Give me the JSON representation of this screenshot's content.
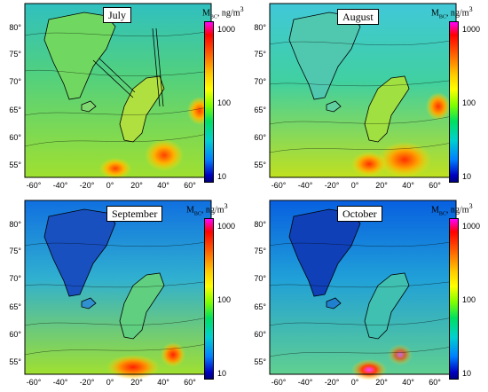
{
  "colorbar": {
    "label_main": "M",
    "label_sub": "BC",
    "label_unit": ", ng/m",
    "label_sup": "3",
    "ticks": [
      "1000",
      "100",
      "10"
    ]
  },
  "axes": {
    "lon_ticks": [
      "-60°",
      "-40°",
      "-20°",
      "0°",
      "20°",
      "40°",
      "60°"
    ],
    "lat_ticks": [
      "80°",
      "75°",
      "70°",
      "65°",
      "60°",
      "55°"
    ]
  },
  "panels": [
    {
      "month": "July"
    },
    {
      "month": "August"
    },
    {
      "month": "September"
    },
    {
      "month": "October"
    }
  ]
}
